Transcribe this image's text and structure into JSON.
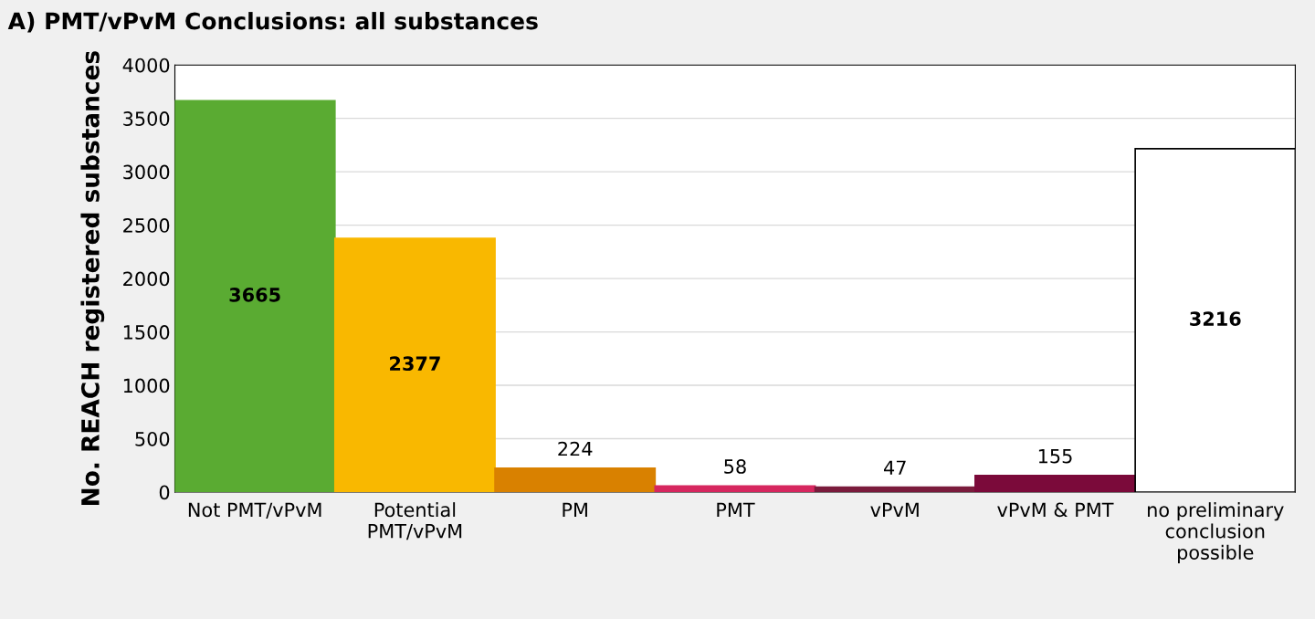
{
  "chart_data": {
    "type": "bar",
    "title": "A) PMT/vPvM Conclusions: all substances",
    "ylabel": "No. REACH registered substances",
    "categories": [
      "Not PMT/vPvM",
      "Potential\nPMT/vPvM",
      "PM",
      "PMT",
      "vPvM",
      "vPvM & PMT",
      "no preliminary\nconclusion\npossible"
    ],
    "values": [
      3665,
      2377,
      224,
      58,
      47,
      155,
      3216
    ],
    "colors": [
      "#5aab32",
      "#f9b800",
      "#d98100",
      "#d6275f",
      "#7a1b3c",
      "#7b0a3a",
      "#ffffff"
    ],
    "ylim": [
      0,
      4000
    ],
    "yticks": [
      0,
      500,
      1000,
      1500,
      2000,
      2500,
      3000,
      3500,
      4000
    ],
    "grid": "y",
    "data_labels": true
  }
}
